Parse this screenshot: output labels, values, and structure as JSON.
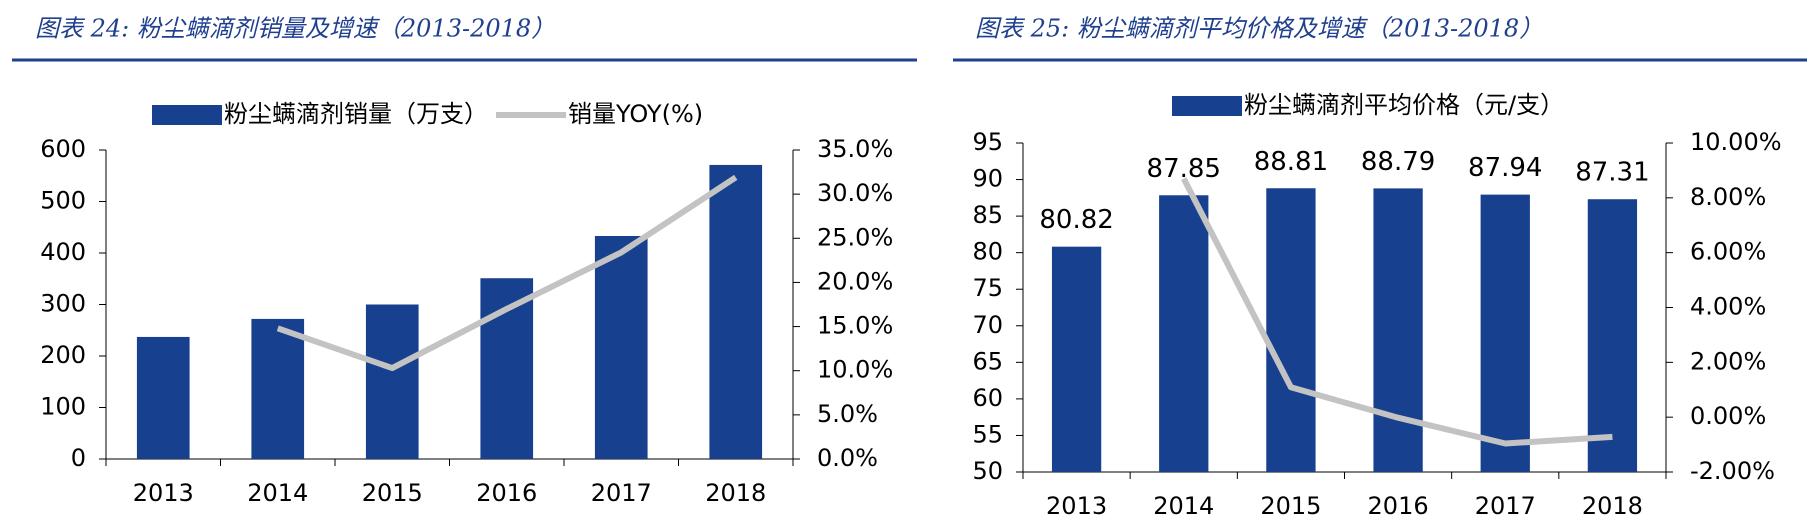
{
  "chart_data": [
    {
      "type": "bar",
      "title": "图表 24:  粉尘螨滴剂销量及增速（2013-2018）",
      "categories": [
        "2013",
        "2014",
        "2015",
        "2016",
        "2017",
        "2018"
      ],
      "series": [
        {
          "name": "粉尘螨滴剂销量（万支）",
          "type": "bar",
          "color": "#17408f",
          "values": [
            237,
            272,
            300,
            351,
            433,
            571
          ]
        },
        {
          "name": "销量YOY(%)",
          "type": "line",
          "axis": "y2",
          "color": "#c3c3c3",
          "values": [
            null,
            14.8,
            10.3,
            17.0,
            23.4,
            31.9
          ]
        }
      ],
      "ylim": [
        0,
        600
      ],
      "yticks": [
        0,
        100,
        200,
        300,
        400,
        500,
        600
      ],
      "y2lim": [
        0,
        35
      ],
      "y2ticks": [
        {
          "value": 0,
          "label": "0.0%"
        },
        {
          "value": 5,
          "label": "5.0%"
        },
        {
          "value": 10,
          "label": "10.0%"
        },
        {
          "value": 15,
          "label": "15.0%"
        },
        {
          "value": 20,
          "label": "20.0%"
        },
        {
          "value": 25,
          "label": "25.0%"
        },
        {
          "value": 30,
          "label": "30.0%"
        },
        {
          "value": 35,
          "label": "35.0%"
        }
      ],
      "grid": false,
      "legend": "top"
    },
    {
      "type": "bar",
      "title": "图表 25:  粉尘螨滴剂平均价格及增速（2013-2018）",
      "categories": [
        "2013",
        "2014",
        "2015",
        "2016",
        "2017",
        "2018"
      ],
      "series": [
        {
          "name": "粉尘螨滴剂平均价格（元/支）",
          "type": "bar",
          "color": "#17408f",
          "values": [
            80.82,
            87.85,
            88.81,
            88.79,
            87.94,
            87.31
          ],
          "data_labels": true
        },
        {
          "type": "line",
          "axis": "y2",
          "color": "#c3c3c3",
          "values": [
            null,
            8.7,
            1.09,
            -0.02,
            -0.96,
            -0.72
          ]
        }
      ],
      "ylim": [
        50,
        95
      ],
      "yticks": [
        50,
        55,
        60,
        65,
        70,
        75,
        80,
        85,
        90,
        95
      ],
      "y2lim": [
        -2,
        10
      ],
      "y2ticks": [
        {
          "value": -2,
          "label": "-2.00%"
        },
        {
          "value": 0,
          "label": "0.00%"
        },
        {
          "value": 2,
          "label": "2.00%"
        },
        {
          "value": 4,
          "label": "4.00%"
        },
        {
          "value": 6,
          "label": "6.00%"
        },
        {
          "value": 8,
          "label": "8.00%"
        },
        {
          "value": 10,
          "label": "10.00%"
        }
      ],
      "grid": false,
      "legend": "top"
    }
  ]
}
